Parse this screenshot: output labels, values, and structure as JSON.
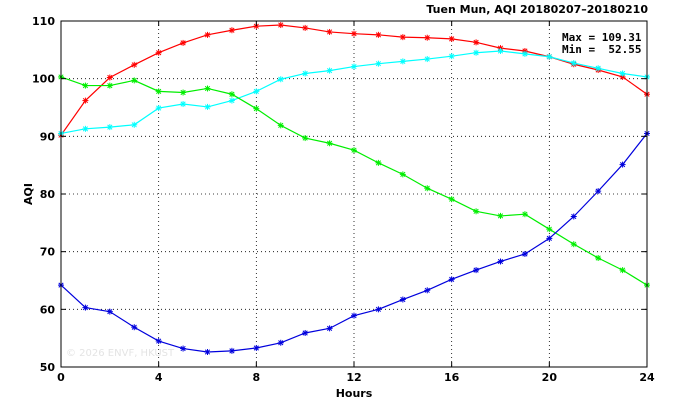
{
  "chart_data": {
    "type": "line",
    "title": "Tuen Mun, AQI 20180207–20180210",
    "xlabel": "Hours",
    "ylabel": "AQI",
    "xlim": [
      0,
      24
    ],
    "ylim": [
      50,
      110
    ],
    "xticks": [
      0,
      4,
      8,
      12,
      16,
      20,
      24
    ],
    "yticks": [
      50,
      60,
      70,
      80,
      90,
      100,
      110
    ],
    "grid": true,
    "stats": {
      "max": "Max = 109.31",
      "min": "Min =  52.55"
    },
    "watermark": "© 2026  ENVF, HKUST",
    "x": [
      0,
      1,
      2,
      3,
      4,
      5,
      6,
      7,
      8,
      9,
      10,
      11,
      12,
      13,
      14,
      15,
      16,
      17,
      18,
      19,
      20,
      21,
      22,
      23,
      24
    ],
    "series": [
      {
        "color": "#ff0000",
        "values": [
          90.2,
          96.2,
          100.2,
          102.4,
          104.5,
          106.2,
          107.6,
          108.4,
          109.1,
          109.3,
          108.8,
          108.1,
          107.8,
          107.6,
          107.2,
          107.1,
          106.9,
          106.3,
          105.3,
          104.8,
          103.8,
          102.5,
          101.5,
          100.3,
          97.3
        ]
      },
      {
        "color": "#00ffff",
        "values": [
          90.5,
          91.3,
          91.6,
          92.0,
          94.9,
          95.6,
          95.1,
          96.2,
          97.8,
          99.9,
          100.9,
          101.4,
          102.1,
          102.6,
          103.0,
          103.4,
          103.9,
          104.5,
          104.8,
          104.3,
          103.8,
          102.7,
          101.8,
          100.9,
          100.3
        ]
      },
      {
        "color": "#00ee00",
        "values": [
          100.3,
          98.8,
          98.8,
          99.7,
          97.8,
          97.6,
          98.3,
          97.3,
          94.8,
          91.9,
          89.7,
          88.8,
          87.6,
          85.4,
          83.4,
          81.0,
          79.1,
          77.0,
          76.2,
          76.5,
          73.9,
          71.3,
          68.9,
          66.8,
          64.2
        ]
      },
      {
        "color": "#0000dd",
        "values": [
          64.2,
          60.3,
          59.6,
          56.9,
          54.5,
          53.2,
          52.6,
          52.8,
          53.3,
          54.2,
          55.9,
          56.7,
          58.9,
          60.0,
          61.7,
          63.3,
          65.2,
          66.8,
          68.3,
          69.6,
          72.3,
          76.1,
          80.5,
          85.1,
          90.5
        ]
      }
    ]
  }
}
